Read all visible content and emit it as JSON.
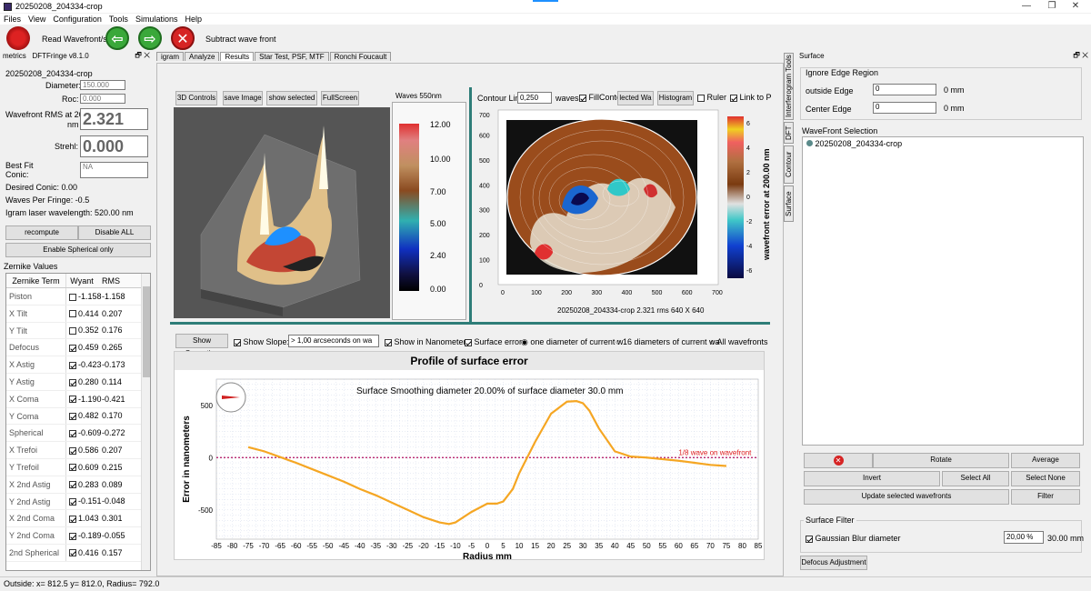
{
  "window": {
    "title": "20250208_204334-crop",
    "minimize": "—",
    "maximize": "❐",
    "close": "✕"
  },
  "menu": [
    "Files",
    "View",
    "Configuration",
    "Tools",
    "Simulations",
    "Help"
  ],
  "toolbar": {
    "read_label": "Read Wavefront/s",
    "subtract_label": "Subtract wave front"
  },
  "left_panel": {
    "header_title": "metrics",
    "version": "DFTFringe v8.1.0",
    "file_name": "20250208_204334-crop",
    "diameter_label": "Diameter:",
    "diameter_value": "150.000",
    "roc_label": "Roc:",
    "roc_value": "0.000",
    "rms_label": "Wavefront RMS at 200.0",
    "rms_unit": "nm",
    "rms_value": "2.321",
    "strehl_label": "Strehl:",
    "strehl_value": "0.000",
    "bestfit_label": "Best Fit",
    "conic_label": "Conic:",
    "conic_value": "NA",
    "desired_conic": "Desired Conic:  0.00",
    "waves_per_fringe": "Waves Per Fringe: -0.5",
    "igram_wavelength": "Igram laser wavelength: 520.00 nm",
    "recompute": "recompute",
    "disable_all": "Disable ALL",
    "enable_spherical": "Enable Spherical only",
    "zernike_title": "Zernike Values",
    "zernike_headers": [
      "Zernike Term",
      "Wyant",
      "RMS"
    ],
    "zernike_rows": [
      {
        "term": "Piston",
        "checked": false,
        "wyant": "-1.158",
        "rms": "-1.158"
      },
      {
        "term": "X Tilt",
        "checked": false,
        "wyant": "0.414",
        "rms": "0.207"
      },
      {
        "term": "Y Tilt",
        "checked": false,
        "wyant": "0.352",
        "rms": "0.176"
      },
      {
        "term": "Defocus",
        "checked": true,
        "wyant": "0.459",
        "rms": "0.265"
      },
      {
        "term": "X Astig",
        "checked": true,
        "wyant": "-0.423",
        "rms": "-0.173"
      },
      {
        "term": "Y Astig",
        "checked": true,
        "wyant": "0.280",
        "rms": "0.114"
      },
      {
        "term": "X Coma",
        "checked": true,
        "wyant": "-1.190",
        "rms": "-0.421"
      },
      {
        "term": "Y Coma",
        "checked": true,
        "wyant": "0.482",
        "rms": "0.170"
      },
      {
        "term": "Spherical",
        "checked": true,
        "wyant": "-0.609",
        "rms": "-0.272"
      },
      {
        "term": "X Trefoi",
        "checked": true,
        "wyant": "0.586",
        "rms": "0.207"
      },
      {
        "term": "Y Trefoil",
        "checked": true,
        "wyant": "0.609",
        "rms": "0.215"
      },
      {
        "term": "X 2nd Astig",
        "checked": true,
        "wyant": "0.283",
        "rms": "0.089"
      },
      {
        "term": "Y 2nd Astig",
        "checked": true,
        "wyant": "-0.151",
        "rms": "-0.048"
      },
      {
        "term": "X 2nd Coma",
        "checked": true,
        "wyant": "1.043",
        "rms": "0.301"
      },
      {
        "term": "Y 2nd Coma",
        "checked": true,
        "wyant": "-0.189",
        "rms": "-0.055"
      },
      {
        "term": "2nd Spherical",
        "checked": true,
        "wyant": "0.416",
        "rms": "0.157"
      }
    ]
  },
  "tabs": [
    "igram",
    "Analyze",
    "Results",
    "Star Test, PSF, MTF",
    "Ronchi  Foucault"
  ],
  "view3d": {
    "controls": "3D Controls",
    "save": "save Image",
    "show_selected": "show selected",
    "fullscreen": "FullScreen"
  },
  "waves_scale": {
    "title": "Waves 550nm",
    "ticks": [
      "12.00",
      "10.00",
      "7.00",
      "5.00",
      "2.40",
      "0.00"
    ]
  },
  "contour": {
    "lines_label": "Contour Lin",
    "lines_value": "0,250",
    "waves_label": "waves",
    "fill_label": "FillConto",
    "selected_label": "lected Wa",
    "histogram_label": "Histogram",
    "ruler_label": "Ruler",
    "link_label": "Link to P",
    "y_ticks": [
      "700",
      "600",
      "500",
      "400",
      "300",
      "200",
      "100",
      "0"
    ],
    "x_ticks": [
      "0",
      "100",
      "200",
      "300",
      "400",
      "500",
      "600",
      "700"
    ],
    "caption": "20250208_204334-crop  2.321 rms 640 X 640",
    "cb_ticks": [
      "6",
      "4",
      "2",
      "0",
      "-2",
      "-4",
      "-6"
    ],
    "cb_label": "wavefront error at 200.00 nm"
  },
  "profile_toolbar": {
    "show_correction": "Show Correction",
    "show_slope": "Show Slope:",
    "slope_value": "> 1,00 arcseconds on wa",
    "show_nm": "Show in Nanometers",
    "surface_error": "Surface error",
    "one_diam": "one diameter of current w",
    "sixteen_diam": "16 diameters of current wa",
    "all_wf": "All wavefronts"
  },
  "chart_data": {
    "type": "line",
    "title": "Profile of surface error",
    "subtitle": "Surface Smoothing diameter  20.00% of surface diameter  30.0 mm",
    "xlabel": "Radius mm",
    "ylabel": "Error in nanometers",
    "xlim": [
      -85,
      85
    ],
    "ylim": [
      -780,
      750
    ],
    "x_ticks": [
      -85,
      -80,
      -75,
      -70,
      -65,
      -60,
      -55,
      -50,
      -45,
      -40,
      -35,
      -30,
      -25,
      -20,
      -15,
      -10,
      -5,
      0,
      5,
      10,
      15,
      20,
      25,
      30,
      35,
      40,
      45,
      50,
      55,
      60,
      65,
      70,
      75,
      80,
      85
    ],
    "y_ticks": [
      500,
      0,
      -500
    ],
    "reference_label": "1/8 wave on wavefront",
    "reference_value": 0,
    "series": [
      {
        "color": "#f5a623",
        "x": [
          -75,
          -70,
          -65,
          -60,
          -55,
          -50,
          -45,
          -40,
          -35,
          -30,
          -25,
          -20,
          -15,
          -12,
          -10,
          -5,
          0,
          3,
          5,
          8,
          10,
          15,
          20,
          25,
          28,
          30,
          32,
          35,
          40,
          45,
          50,
          55,
          60,
          65,
          70,
          75
        ],
        "y": [
          100,
          60,
          5,
          -50,
          -110,
          -170,
          -230,
          -300,
          -360,
          -430,
          -500,
          -570,
          -620,
          -635,
          -620,
          -520,
          -440,
          -440,
          -420,
          -300,
          -150,
          150,
          420,
          535,
          540,
          520,
          450,
          280,
          60,
          10,
          0,
          -15,
          -30,
          -50,
          -70,
          -80
        ]
      }
    ]
  },
  "right_panel": {
    "header_title": "Surface",
    "ignore_edge": "Ignore Edge Region",
    "outside_edge_label": "outside Edge",
    "outside_edge_value": "0",
    "center_edge_label": "Center Edge",
    "center_edge_value": "0",
    "unit_mm": "0 mm",
    "wf_selection": "WaveFront Selection",
    "wf_item": "20250208_204334-crop",
    "rotate": "Rotate",
    "average": "Average",
    "invert": "Invert",
    "select_all": "Select All",
    "select_none": "Select None",
    "update_selected": "Update selected wavefronts",
    "filter": "Filter",
    "surface_filter": "Surface Filter",
    "gaussian_label": "Gaussian Blur diameter",
    "gaussian_value": "20,00 %",
    "gaussian_mm": "30.00 mm",
    "defocus_adjust": "Defocus Adjustment"
  },
  "side_tabs": [
    "Surface",
    "Contour",
    "DFT",
    "Interferogram Tools"
  ],
  "status": "Outside: x= 812.5 y= 812.0, Radius=  792.0"
}
